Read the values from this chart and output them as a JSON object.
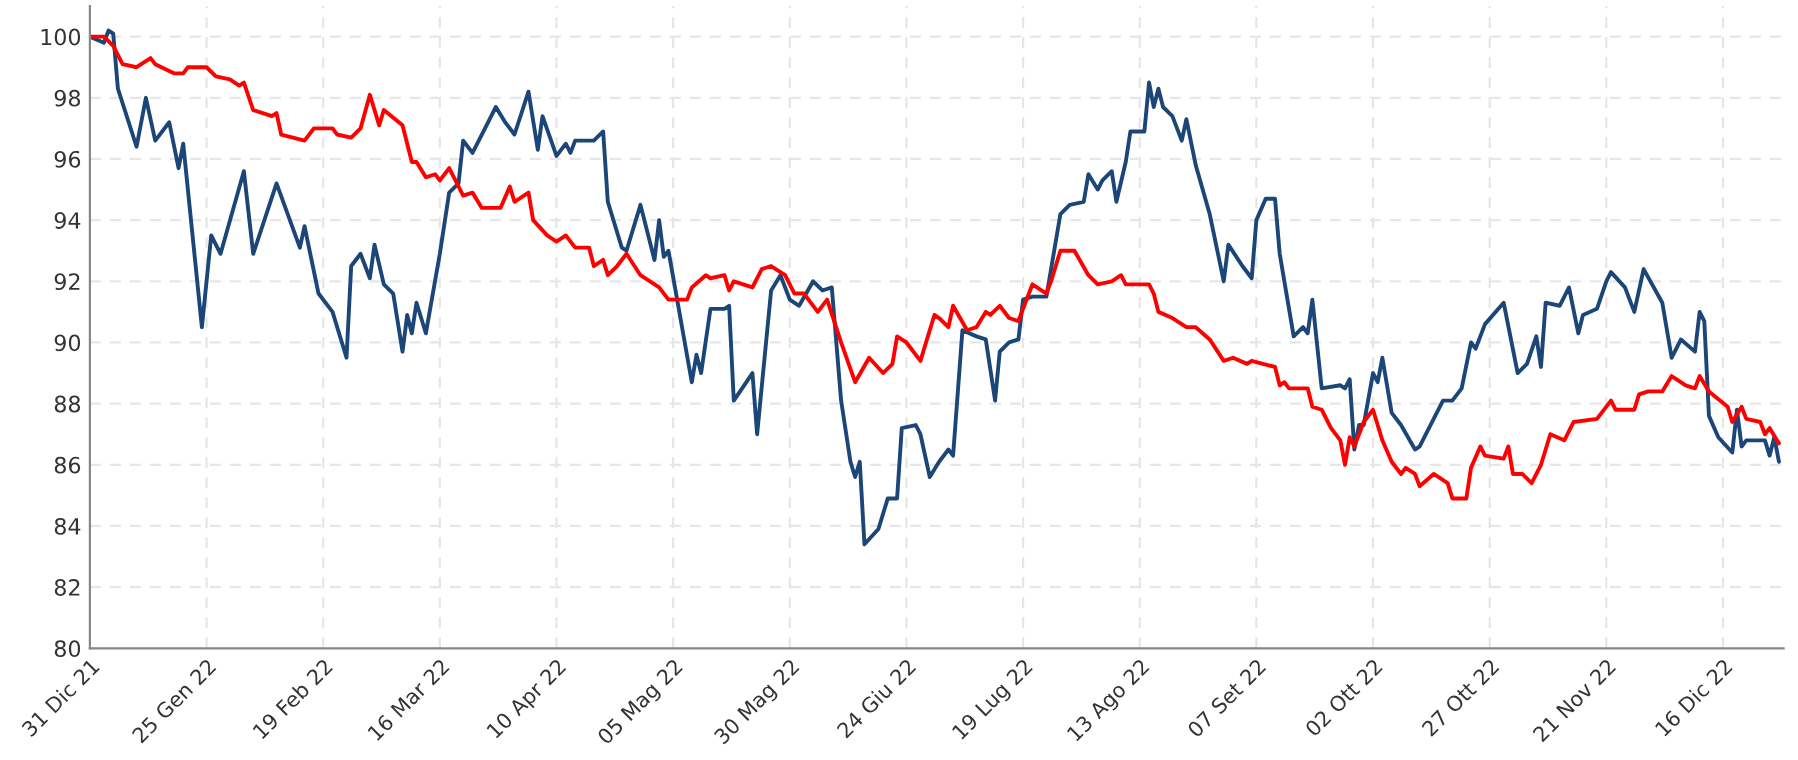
{
  "chart_data": {
    "type": "line",
    "xlim": [
      "2021-12-31",
      "2022-12-29"
    ],
    "xticks": [
      {
        "value": "2021-12-31",
        "label": "31 Dic 21"
      },
      {
        "value": "2022-01-25",
        "label": "25 Gen 22"
      },
      {
        "value": "2022-02-19",
        "label": "19 Feb 22"
      },
      {
        "value": "2022-03-16",
        "label": "16 Mar 22"
      },
      {
        "value": "2022-04-10",
        "label": "10 Apr 22"
      },
      {
        "value": "2022-05-05",
        "label": "05 Mag 22"
      },
      {
        "value": "2022-05-30",
        "label": "30 Mag 22"
      },
      {
        "value": "2022-06-24",
        "label": "24 Giu 22"
      },
      {
        "value": "2022-07-19",
        "label": "19 Lug 22"
      },
      {
        "value": "2022-08-13",
        "label": "13 Ago 22"
      },
      {
        "value": "2022-09-07",
        "label": "07 Set 22"
      },
      {
        "value": "2022-10-02",
        "label": "02 Ott 22"
      },
      {
        "value": "2022-10-27",
        "label": "27 Ott 22"
      },
      {
        "value": "2022-11-21",
        "label": "21 Nov 22"
      },
      {
        "value": "2022-12-16",
        "label": "16 Dic 22"
      }
    ],
    "ylim": [
      80,
      101
    ],
    "yticks": [
      80,
      82,
      84,
      86,
      88,
      90,
      92,
      94,
      96,
      98,
      100
    ],
    "grid": true,
    "series": [
      {
        "color": "#1b4677",
        "x": [
          "2021-12-31",
          "2022-01-03",
          "2022-01-04",
          "2022-01-05",
          "2022-01-06",
          "2022-01-10",
          "2022-01-12",
          "2022-01-14",
          "2022-01-17",
          "2022-01-19",
          "2022-01-20",
          "2022-01-24",
          "2022-01-26",
          "2022-01-28",
          "2022-02-02",
          "2022-02-04",
          "2022-02-09",
          "2022-02-14",
          "2022-02-15",
          "2022-02-18",
          "2022-02-21",
          "2022-02-24",
          "2022-02-25",
          "2022-02-27",
          "2022-03-01",
          "2022-03-02",
          "2022-03-04",
          "2022-03-06",
          "2022-03-08",
          "2022-03-09",
          "2022-03-10",
          "2022-03-11",
          "2022-03-13",
          "2022-03-16",
          "2022-03-18",
          "2022-03-20",
          "2022-03-21",
          "2022-03-23",
          "2022-03-25",
          "2022-03-28",
          "2022-03-30",
          "2022-04-01",
          "2022-04-04",
          "2022-04-06",
          "2022-04-07",
          "2022-04-10",
          "2022-04-12",
          "2022-04-13",
          "2022-04-14",
          "2022-04-18",
          "2022-04-20",
          "2022-04-21",
          "2022-04-24",
          "2022-04-25",
          "2022-04-28",
          "2022-05-01",
          "2022-05-02",
          "2022-05-03",
          "2022-05-04",
          "2022-05-09",
          "2022-05-10",
          "2022-05-11",
          "2022-05-13",
          "2022-05-16",
          "2022-05-17",
          "2022-05-18",
          "2022-05-22",
          "2022-05-23",
          "2022-05-26",
          "2022-05-28",
          "2022-05-30",
          "2022-06-01",
          "2022-06-04",
          "2022-06-06",
          "2022-06-08",
          "2022-06-10",
          "2022-06-12",
          "2022-06-13",
          "2022-06-14",
          "2022-06-15",
          "2022-06-18",
          "2022-06-20",
          "2022-06-22",
          "2022-06-23",
          "2022-06-26",
          "2022-06-27",
          "2022-06-29",
          "2022-07-01",
          "2022-07-03",
          "2022-07-04",
          "2022-07-06",
          "2022-07-09",
          "2022-07-11",
          "2022-07-13",
          "2022-07-14",
          "2022-07-16",
          "2022-07-18",
          "2022-07-19",
          "2022-07-21",
          "2022-07-24",
          "2022-07-27",
          "2022-07-29",
          "2022-08-01",
          "2022-08-02",
          "2022-08-04",
          "2022-08-05",
          "2022-08-07",
          "2022-08-08",
          "2022-08-10",
          "2022-08-11",
          "2022-08-14",
          "2022-08-15",
          "2022-08-16",
          "2022-08-17",
          "2022-08-18",
          "2022-08-20",
          "2022-08-22",
          "2022-08-23",
          "2022-08-25",
          "2022-08-28",
          "2022-08-31",
          "2022-09-01",
          "2022-09-04",
          "2022-09-06",
          "2022-09-07",
          "2022-09-09",
          "2022-09-11",
          "2022-09-12",
          "2022-09-13",
          "2022-09-15",
          "2022-09-17",
          "2022-09-18",
          "2022-09-19",
          "2022-09-21",
          "2022-09-25",
          "2022-09-26",
          "2022-09-27",
          "2022-09-28",
          "2022-09-29",
          "2022-09-30",
          "2022-10-02",
          "2022-10-03",
          "2022-10-04",
          "2022-10-06",
          "2022-10-08",
          "2022-10-11",
          "2022-10-12",
          "2022-10-15",
          "2022-10-17",
          "2022-10-19",
          "2022-10-21",
          "2022-10-23",
          "2022-10-24",
          "2022-10-26",
          "2022-10-30",
          "2022-11-02",
          "2022-11-04",
          "2022-11-06",
          "2022-11-07",
          "2022-11-08",
          "2022-11-11",
          "2022-11-13",
          "2022-11-15",
          "2022-11-16",
          "2022-11-19",
          "2022-11-21",
          "2022-11-22",
          "2022-11-25",
          "2022-11-27",
          "2022-11-29",
          "2022-12-03",
          "2022-12-05",
          "2022-12-07",
          "2022-12-10",
          "2022-12-11",
          "2022-12-12",
          "2022-12-13",
          "2022-12-15",
          "2022-12-18",
          "2022-12-19",
          "2022-12-20",
          "2022-12-21",
          "2022-12-25",
          "2022-12-26",
          "2022-12-27",
          "2022-12-28"
        ],
        "values": [
          100.0,
          99.8,
          100.2,
          100.1,
          98.3,
          96.4,
          98.0,
          96.6,
          97.2,
          95.7,
          96.5,
          90.5,
          93.5,
          92.9,
          95.6,
          92.9,
          95.2,
          93.1,
          93.8,
          91.6,
          91.0,
          89.5,
          92.5,
          92.9,
          92.1,
          93.2,
          91.9,
          91.6,
          89.7,
          90.9,
          90.3,
          91.3,
          90.3,
          92.9,
          94.9,
          95.2,
          96.6,
          96.2,
          96.8,
          97.7,
          97.2,
          96.8,
          98.2,
          96.3,
          97.4,
          96.1,
          96.5,
          96.2,
          96.6,
          96.6,
          96.9,
          94.6,
          93.1,
          93.0,
          94.5,
          92.7,
          94.0,
          92.8,
          93.0,
          88.7,
          89.6,
          89.0,
          91.1,
          91.1,
          91.2,
          88.1,
          89.0,
          87.0,
          91.7,
          92.2,
          91.4,
          91.2,
          92.0,
          91.7,
          91.8,
          88.1,
          86.1,
          85.6,
          86.1,
          83.4,
          83.9,
          84.9,
          84.9,
          87.2,
          87.3,
          87.0,
          85.6,
          86.1,
          86.5,
          86.3,
          90.4,
          90.2,
          90.1,
          88.1,
          89.7,
          90.0,
          90.1,
          91.4,
          91.5,
          91.5,
          94.2,
          94.5,
          94.6,
          95.5,
          95.0,
          95.3,
          95.6,
          94.6,
          95.9,
          96.9,
          96.9,
          98.5,
          97.7,
          98.3,
          97.7,
          97.4,
          96.6,
          97.3,
          95.8,
          94.2,
          92.0,
          93.2,
          92.5,
          92.1,
          94.0,
          94.7,
          94.7,
          92.9,
          92.0,
          90.2,
          90.5,
          90.3,
          91.4,
          88.5,
          88.6,
          88.5,
          88.8,
          86.5,
          87.3,
          87.3,
          89.0,
          88.7,
          89.5,
          87.7,
          87.3,
          86.5,
          86.6,
          87.5,
          88.1,
          88.1,
          88.5,
          90.0,
          89.8,
          90.6,
          91.3,
          89.0,
          89.3,
          90.2,
          89.2,
          91.3,
          91.2,
          91.8,
          90.3,
          90.9,
          91.1,
          92.0,
          92.3,
          91.8,
          91.0,
          92.4,
          91.3,
          89.5,
          90.1,
          89.7,
          91.0,
          90.7,
          87.6,
          86.9,
          86.4,
          87.8,
          86.6,
          86.8,
          86.8,
          86.3,
          86.9,
          86.1
        ]
      },
      {
        "color": "#ff0000",
        "x": [
          "2021-12-31",
          "2022-01-03",
          "2022-01-05",
          "2022-01-07",
          "2022-01-10",
          "2022-01-13",
          "2022-01-14",
          "2022-01-18",
          "2022-01-20",
          "2022-01-21",
          "2022-01-25",
          "2022-01-27",
          "2022-01-30",
          "2022-02-01",
          "2022-02-02",
          "2022-02-04",
          "2022-02-08",
          "2022-02-09",
          "2022-02-10",
          "2022-02-15",
          "2022-02-17",
          "2022-02-21",
          "2022-02-22",
          "2022-02-25",
          "2022-02-27",
          "2022-03-01",
          "2022-03-03",
          "2022-03-04",
          "2022-03-08",
          "2022-03-10",
          "2022-03-11",
          "2022-03-13",
          "2022-03-15",
          "2022-03-16",
          "2022-03-18",
          "2022-03-21",
          "2022-03-23",
          "2022-03-25",
          "2022-03-29",
          "2022-03-31",
          "2022-04-01",
          "2022-04-04",
          "2022-04-05",
          "2022-04-08",
          "2022-04-10",
          "2022-04-12",
          "2022-04-14",
          "2022-04-17",
          "2022-04-18",
          "2022-04-20",
          "2022-04-21",
          "2022-04-23",
          "2022-04-25",
          "2022-04-28",
          "2022-05-02",
          "2022-05-04",
          "2022-05-08",
          "2022-05-09",
          "2022-05-12",
          "2022-05-13",
          "2022-05-16",
          "2022-05-17",
          "2022-05-18",
          "2022-05-22",
          "2022-05-24",
          "2022-05-26",
          "2022-05-29",
          "2022-05-31",
          "2022-06-02",
          "2022-06-05",
          "2022-06-07",
          "2022-06-10",
          "2022-06-13",
          "2022-06-16",
          "2022-06-19",
          "2022-06-21",
          "2022-06-22",
          "2022-06-24",
          "2022-06-27",
          "2022-06-30",
          "2022-07-01",
          "2022-07-03",
          "2022-07-04",
          "2022-07-07",
          "2022-07-09",
          "2022-07-11",
          "2022-07-12",
          "2022-07-14",
          "2022-07-16",
          "2022-07-18",
          "2022-07-21",
          "2022-07-24",
          "2022-07-25",
          "2022-07-27",
          "2022-07-30",
          "2022-08-02",
          "2022-08-04",
          "2022-08-07",
          "2022-08-09",
          "2022-08-10",
          "2022-08-15",
          "2022-08-16",
          "2022-08-17",
          "2022-08-20",
          "2022-08-23",
          "2022-08-25",
          "2022-08-28",
          "2022-08-31",
          "2022-09-02",
          "2022-09-05",
          "2022-09-06",
          "2022-09-11",
          "2022-09-12",
          "2022-09-13",
          "2022-09-14",
          "2022-09-18",
          "2022-09-19",
          "2022-09-21",
          "2022-09-23",
          "2022-09-25",
          "2022-09-26",
          "2022-09-27",
          "2022-09-28",
          "2022-09-30",
          "2022-10-02",
          "2022-10-04",
          "2022-10-06",
          "2022-10-08",
          "2022-10-09",
          "2022-10-11",
          "2022-10-12",
          "2022-10-15",
          "2022-10-18",
          "2022-10-19",
          "2022-10-22",
          "2022-10-23",
          "2022-10-25",
          "2022-10-26",
          "2022-10-30",
          "2022-10-31",
          "2022-11-01",
          "2022-11-03",
          "2022-11-05",
          "2022-11-07",
          "2022-11-09",
          "2022-11-12",
          "2022-11-14",
          "2022-11-19",
          "2022-11-22",
          "2022-11-23",
          "2022-11-27",
          "2022-11-28",
          "2022-11-30",
          "2022-12-03",
          "2022-12-05",
          "2022-12-08",
          "2022-12-10",
          "2022-12-11",
          "2022-12-13",
          "2022-12-17",
          "2022-12-18",
          "2022-12-20",
          "2022-12-21",
          "2022-12-24",
          "2022-12-25",
          "2022-12-26",
          "2022-12-28"
        ],
        "values": [
          100.0,
          100.0,
          99.7,
          99.1,
          99.0,
          99.3,
          99.1,
          98.8,
          98.8,
          99.0,
          99.0,
          98.7,
          98.6,
          98.4,
          98.5,
          97.6,
          97.4,
          97.5,
          96.8,
          96.6,
          97.0,
          97.0,
          96.8,
          96.7,
          97.0,
          98.1,
          97.1,
          97.6,
          97.1,
          95.9,
          95.9,
          95.4,
          95.5,
          95.3,
          95.7,
          94.8,
          94.9,
          94.4,
          94.4,
          95.1,
          94.6,
          94.9,
          94.0,
          93.5,
          93.3,
          93.5,
          93.1,
          93.1,
          92.5,
          92.7,
          92.2,
          92.5,
          92.9,
          92.2,
          91.8,
          91.4,
          91.4,
          91.8,
          92.2,
          92.1,
          92.2,
          91.7,
          92.0,
          91.8,
          92.4,
          92.5,
          92.2,
          91.6,
          91.6,
          91.0,
          91.4,
          90.0,
          88.7,
          89.5,
          89.0,
          89.3,
          90.2,
          90.0,
          89.4,
          90.9,
          90.8,
          90.5,
          91.2,
          90.4,
          90.5,
          91.0,
          90.9,
          91.2,
          90.8,
          90.7,
          91.9,
          91.6,
          92.0,
          93.0,
          93.0,
          92.2,
          91.9,
          92.0,
          92.2,
          91.9,
          91.9,
          91.6,
          91.0,
          90.8,
          90.5,
          90.5,
          90.1,
          89.4,
          89.5,
          89.3,
          89.4,
          89.2,
          88.6,
          88.7,
          88.5,
          88.5,
          87.9,
          87.8,
          87.2,
          86.8,
          86.0,
          86.9,
          86.6,
          87.4,
          87.8,
          86.8,
          86.1,
          85.7,
          85.9,
          85.7,
          85.3,
          85.7,
          85.4,
          84.9,
          84.9,
          85.9,
          86.6,
          86.3,
          86.2,
          86.6,
          85.7,
          85.7,
          85.4,
          86.0,
          87.0,
          86.8,
          87.4,
          87.5,
          88.1,
          87.8,
          87.8,
          88.3,
          88.4,
          88.4,
          88.9,
          88.6,
          88.5,
          88.9,
          88.4,
          87.9,
          87.4,
          87.9,
          87.5,
          87.4,
          87.0,
          87.2,
          86.7
        ]
      }
    ]
  }
}
